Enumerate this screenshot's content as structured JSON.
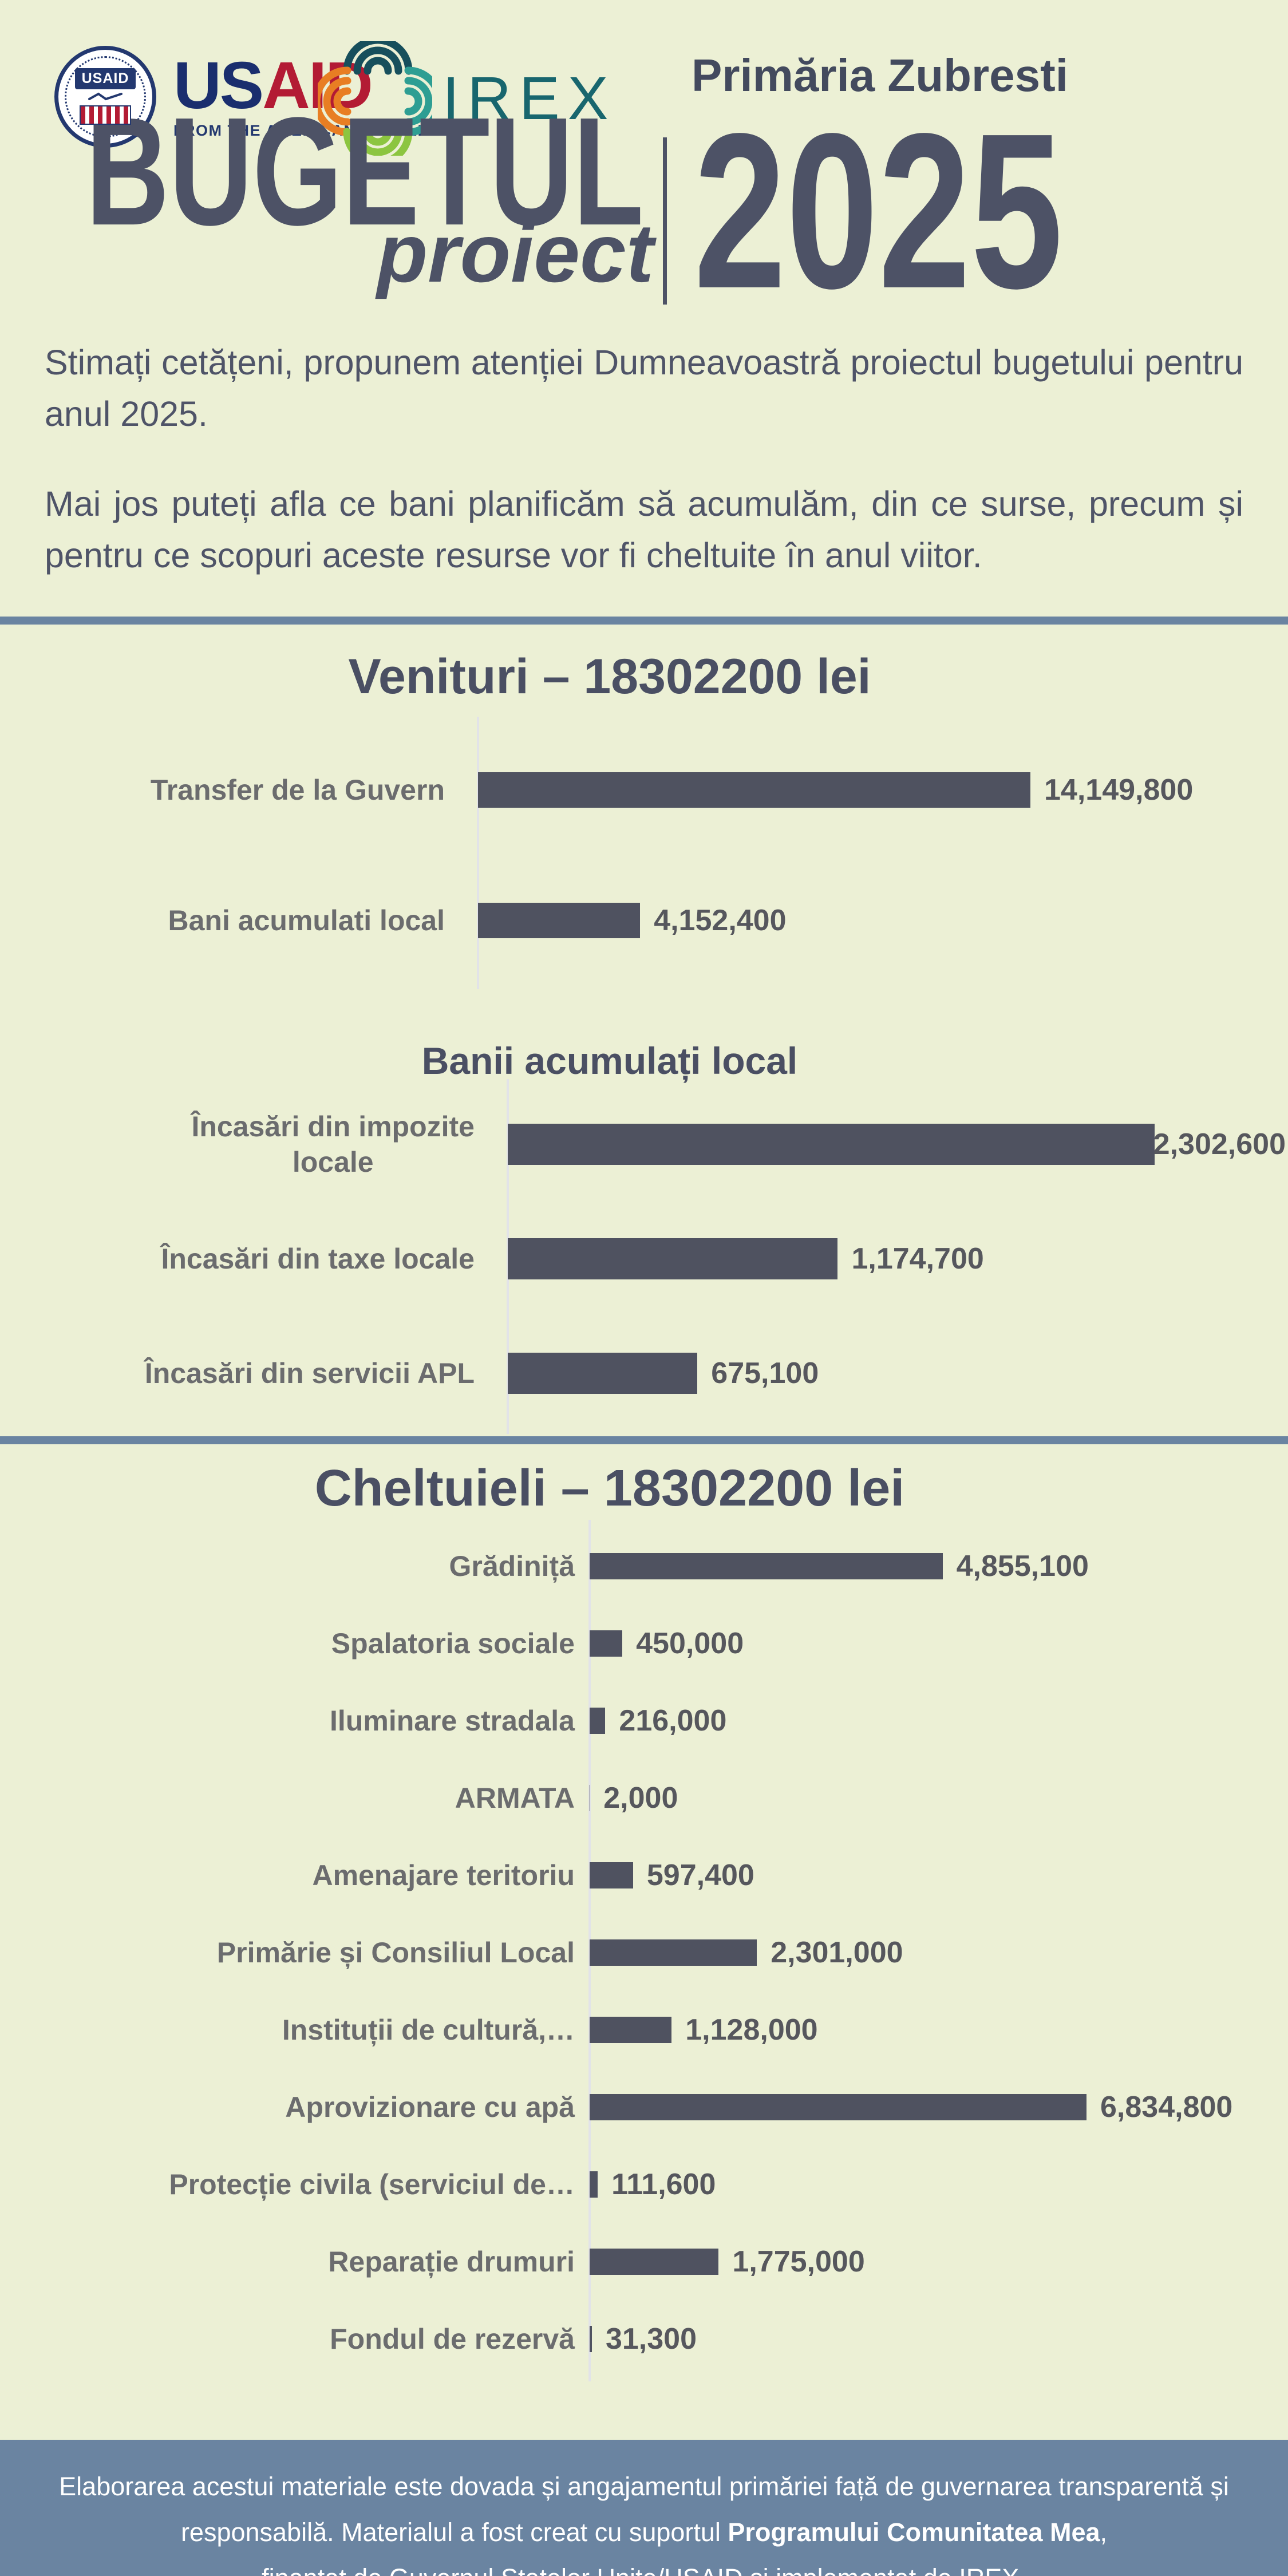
{
  "header": {
    "municipality": "Primăria Zubresti",
    "title": "BUGETUL",
    "subtitle": "proiect",
    "year": "2025",
    "usaid_logo": {
      "seal_text": "USAID",
      "word_us": "US",
      "word_aid": "AID",
      "tagline": "FROM THE AMERICAN PEOPLE"
    },
    "irex_logo": {
      "word": "IREX"
    }
  },
  "intro": {
    "paragraph1": "Stimați cetățeni, propunem atenției Dumneavoastră proiectul bugetului pentru anul 2025.",
    "paragraph2": "Mai jos puteți afla ce bani planificăm să acumulăm, din ce surse, precum și pentru ce scopuri aceste resurse vor fi cheltuite în anul viitor."
  },
  "colors": {
    "background": "#ECF0D5",
    "bar": "#4F5260",
    "title_text": "#4A4F63",
    "category_label": "#6B6C6E",
    "accent_blue": "#6A84A1",
    "footer_text": "#FFFFFF"
  },
  "chart_data": [
    {
      "type": "bar",
      "orientation": "horizontal",
      "title": "Venituri – 18302200 lei",
      "unit": "lei",
      "grid": false,
      "legend": false,
      "categories": [
        "Transfer de la Guvern",
        "Bani acumulati local"
      ],
      "values": [
        14149800,
        4152400
      ],
      "value_labels": [
        "14,149,800",
        "4,152,400"
      ]
    },
    {
      "type": "bar",
      "orientation": "horizontal",
      "title": "Banii acumulați local",
      "unit": "lei",
      "grid": false,
      "legend": false,
      "categories": [
        "Încasări din impozite\nlocale",
        "Încasări din taxe locale",
        "Încasări din servicii APL"
      ],
      "values": [
        2302600,
        1174700,
        675100
      ],
      "value_labels": [
        "2,302,600",
        "1,174,700",
        "675,100"
      ]
    },
    {
      "type": "bar",
      "orientation": "horizontal",
      "title": "Cheltuieli – 18302200 lei",
      "unit": "lei",
      "grid": false,
      "legend": false,
      "categories": [
        "Grădiniță",
        "Spalatoria sociale",
        "Iluminare stradala",
        "ARMATA",
        "Amenajare teritoriu",
        "Primărie și Consiliul Local",
        "Instituții de cultură,…",
        "Aprovizionare cu apă",
        "Protecție civila (serviciul de…",
        "Reparație drumuri",
        "Fondul de rezervă"
      ],
      "values": [
        4855100,
        450000,
        216000,
        2000,
        597400,
        2301000,
        1128000,
        6834800,
        111600,
        1775000,
        31300
      ],
      "value_labels": [
        "4,855,100",
        "450,000",
        "216,000",
        "2,000",
        "597,400",
        "2,301,000",
        "1,128,000",
        "6,834,800",
        "111,600",
        "1,775,000",
        "31,300"
      ]
    }
  ],
  "footer": {
    "line1": "Elaborarea acestui materiale este dovada și angajamentul primăriei față de guvernarea transparentă și",
    "line2_pre": "responsabilă. Materialul a fost creat cu suportul ",
    "line2_bold": "Programului Comunitatea Mea",
    "line2_post": ",",
    "line3": "finanțat de Guvernul Statelor Unite/USAID și implementat de IREX."
  }
}
